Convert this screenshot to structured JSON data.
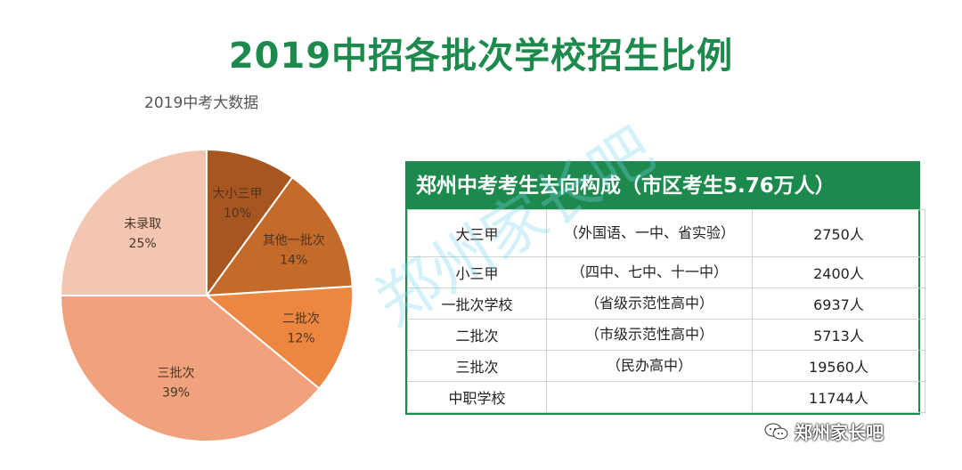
{
  "title": "2019中招各批次学校招生比例",
  "subtitle": "2019中考大数据",
  "chart_data": {
    "type": "pie",
    "slices": [
      {
        "label": "大小三甲",
        "value": 10,
        "percent_label": "10%",
        "color": "#a8561f"
      },
      {
        "label": "其他一批次",
        "value": 14,
        "percent_label": "14%",
        "color": "#c46a2a"
      },
      {
        "label": "二批次",
        "value": 12,
        "percent_label": "12%",
        "color": "#ec8640"
      },
      {
        "label": "三批次",
        "value": 39,
        "percent_label": "39%",
        "color": "#efa27c"
      },
      {
        "label": "未录取",
        "value": 25,
        "percent_label": "25%",
        "color": "#f3c6b1"
      }
    ]
  },
  "table": {
    "header": "郑州中考考生去向构成（市区考生5.76万人）",
    "rows": [
      {
        "category": "大三甲",
        "note": "（外国语、一中、省实验）",
        "count": "2750人"
      },
      {
        "category": "小三甲",
        "note": "（四中、七中、十一中）",
        "count": "2400人"
      },
      {
        "category": "一批次学校",
        "note": "（省级示范性高中）",
        "count": "6937人"
      },
      {
        "category": "二批次",
        "note": "（市级示范性高中）",
        "count": "5713人"
      },
      {
        "category": "三批次",
        "note": "（民办高中）",
        "count": "19560人"
      },
      {
        "category": "中职学校",
        "note": "",
        "count": "11744人"
      }
    ]
  },
  "watermark": "郑州家长吧",
  "brand": {
    "name": "郑州家长吧",
    "icon": "wechat-icon"
  },
  "colors": {
    "title": "#1b8a4c",
    "table_header_bg": "#1b8a4c"
  }
}
